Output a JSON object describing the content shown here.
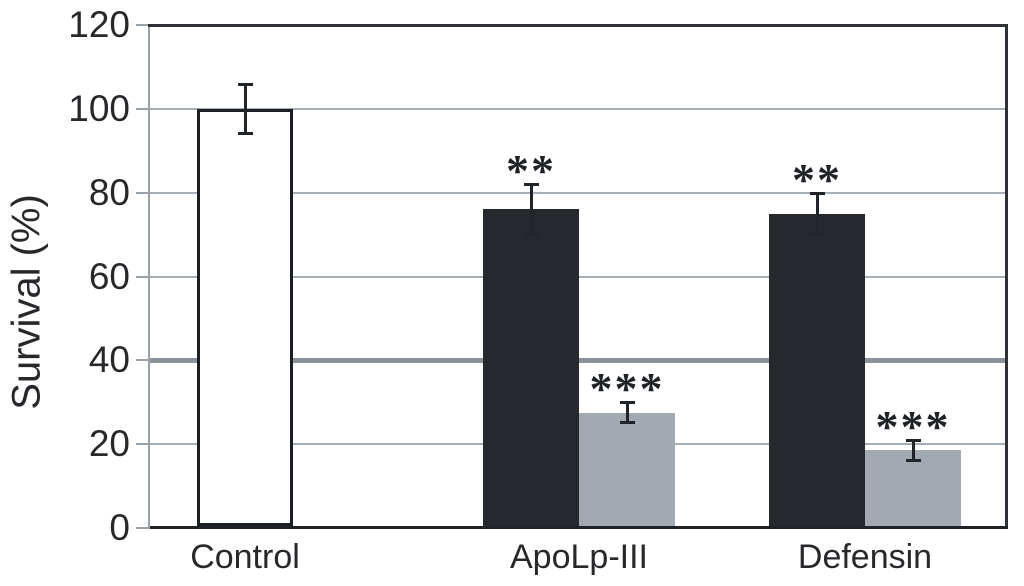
{
  "chart_data": {
    "type": "bar",
    "title": "",
    "xlabel": "",
    "ylabel": "Survival (%)",
    "ylim": [
      0,
      120
    ],
    "yticks": [
      0,
      20,
      40,
      60,
      80,
      100,
      120
    ],
    "emphasized_gridline": 40,
    "grid": "horizontal",
    "legend": "none",
    "categories": [
      "Control",
      "ApoLp-III",
      "Defensin"
    ],
    "bars": [
      {
        "category": "Control",
        "group": 0,
        "slot": 0,
        "value": 100,
        "error": 6,
        "fill": "#ffffff",
        "outline": "#1b1e22",
        "annotation": ""
      },
      {
        "category": "ApoLp-III",
        "group": 1,
        "slot": 0,
        "value": 76,
        "error": 6,
        "fill": "#25282c",
        "outline": "none",
        "annotation": "**"
      },
      {
        "category": "ApoLp-III",
        "group": 1,
        "slot": 1,
        "value": 27.5,
        "error": 2.5,
        "fill": "#a2a9b0",
        "outline": "none",
        "annotation": "***"
      },
      {
        "category": "Defensin",
        "group": 2,
        "slot": 0,
        "value": 75,
        "error": 5,
        "fill": "#25282c",
        "outline": "none",
        "annotation": "**"
      },
      {
        "category": "Defensin",
        "group": 2,
        "slot": 1,
        "value": 18.5,
        "error": 2.5,
        "fill": "#a2a9b0",
        "outline": "none",
        "annotation": "***"
      }
    ],
    "colors": {
      "bar_black": "#25282c",
      "bar_gray": "#a2a9b0",
      "bar_white": "#ffffff",
      "gridline": "#a8aeb6",
      "gridline_major": "#8b929c",
      "axis_dark": "#1f2226",
      "axis_gray": "#9aa1a9",
      "text": "#26282b"
    }
  }
}
